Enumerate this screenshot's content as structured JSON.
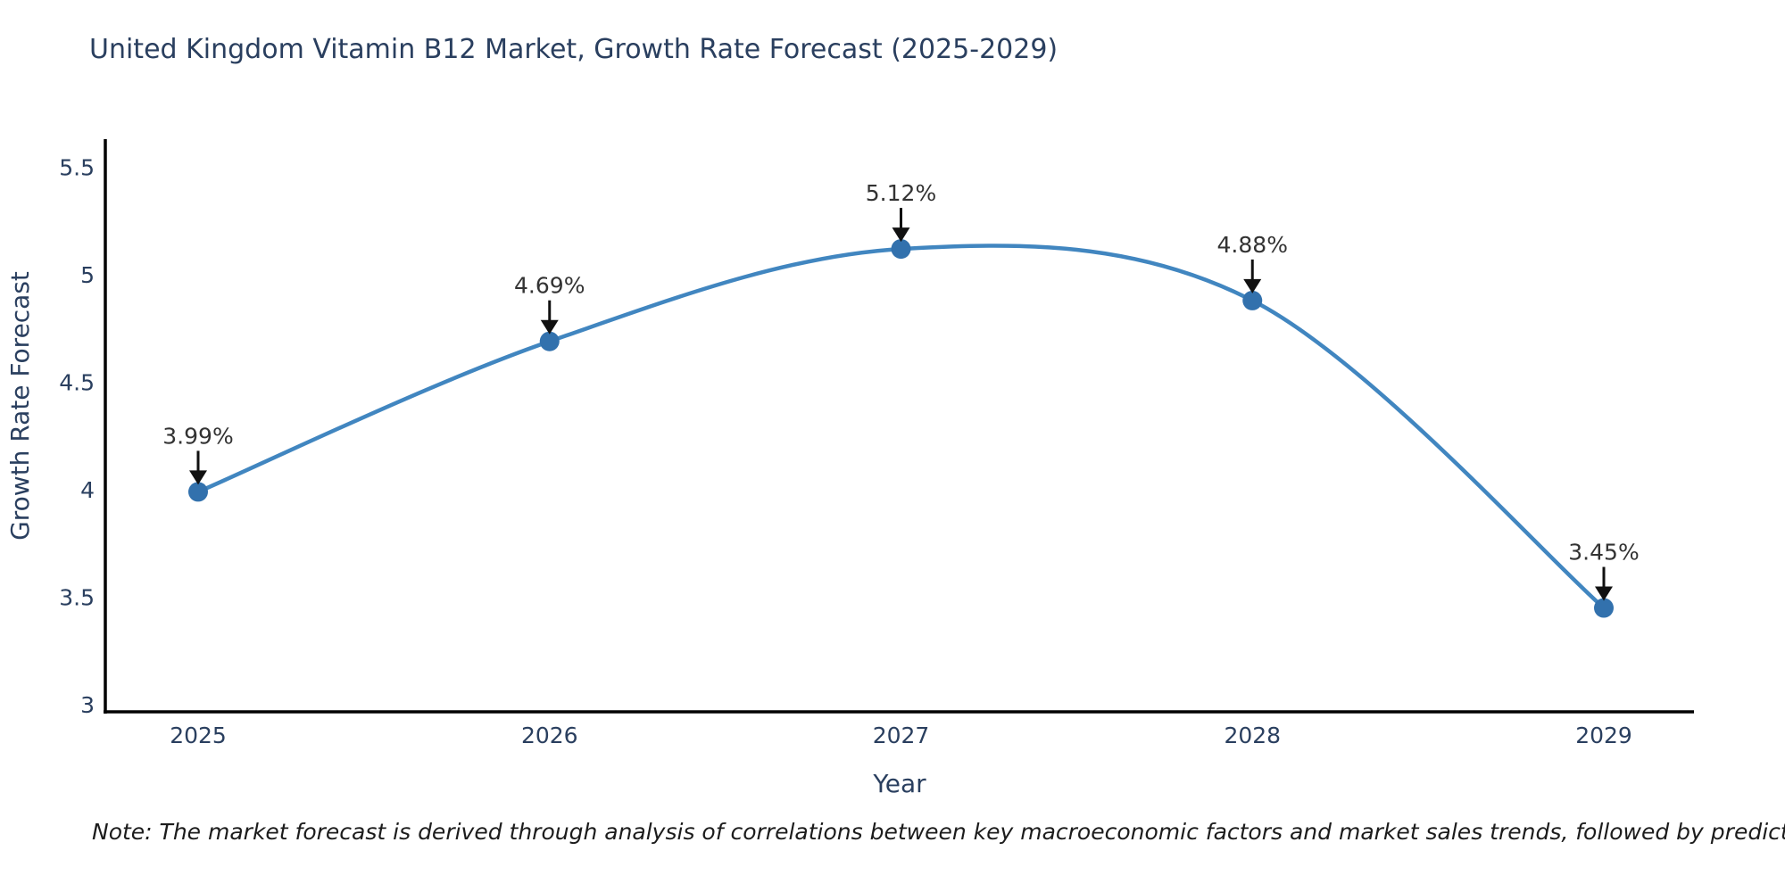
{
  "title": "United Kingdom Vitamin B12 Market, Growth Rate Forecast (2025-2029)",
  "note": "Note: The market forecast is derived through analysis of correlations between key macroeconomic factors and market sales trends, followed by predictive modeling to project future sales",
  "chart_data": {
    "type": "line",
    "title": "United Kingdom Vitamin B12 Market, Growth Rate Forecast (2025-2029)",
    "xlabel": "Year",
    "ylabel": "Growth Rate Forecast",
    "x": [
      2025,
      2026,
      2027,
      2028,
      2029
    ],
    "values": [
      3.99,
      4.69,
      5.12,
      4.88,
      3.45
    ],
    "point_labels": [
      "3.99%",
      "4.69%",
      "5.12%",
      "4.88%",
      "3.45%"
    ],
    "yticks": [
      3,
      3.5,
      4,
      4.5,
      5,
      5.5
    ],
    "ytick_labels": [
      "3",
      "3.5",
      "4",
      "4.5",
      "5",
      "5.5"
    ],
    "xtick_labels": [
      "2025",
      "2026",
      "2027",
      "2028",
      "2029"
    ],
    "ylim": [
      3,
      5.62
    ],
    "grid": false,
    "legend": "none",
    "curve": "spline",
    "line_color": "#4186c0",
    "marker_color": "#3271ad",
    "axis_color": "#000000",
    "tick_color": "#2a3f5f",
    "annotation_color": "#333333",
    "arrow_color": "#111111"
  }
}
